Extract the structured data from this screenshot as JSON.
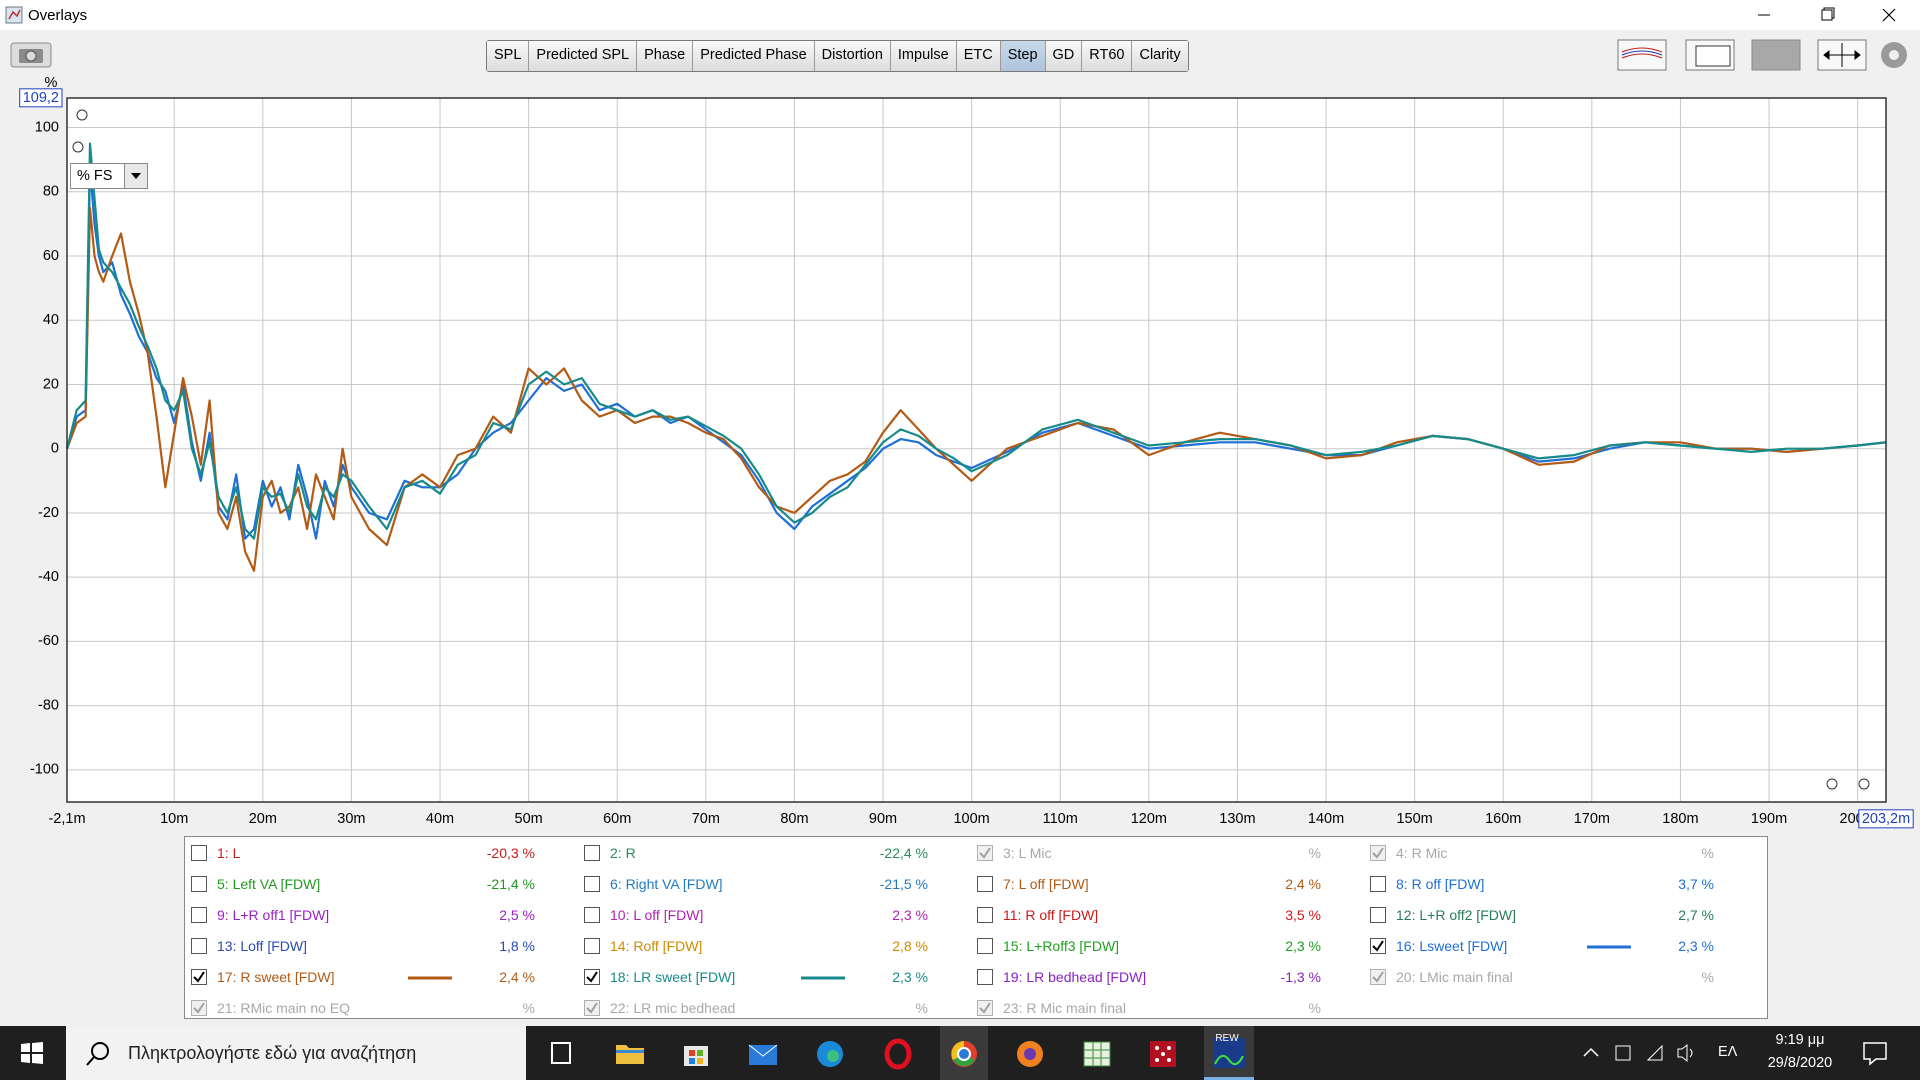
{
  "window": {
    "title": "Overlays"
  },
  "toolbar": {
    "tabs": [
      "SPL",
      "Predicted SPL",
      "Phase",
      "Predicted Phase",
      "Distortion",
      "Impulse",
      "ETC",
      "Step",
      "GD",
      "RT60",
      "Clarity"
    ],
    "active_tab": 7
  },
  "y_unit_selector": "% FS",
  "chart_data": {
    "type": "line",
    "y_label": "%",
    "xlim": [
      -2.1,
      203.2
    ],
    "ylim": [
      -110,
      109.2
    ],
    "xticks": [
      {
        "value": -2.1,
        "label": "-2,1m"
      },
      {
        "value": 10,
        "label": "10m"
      },
      {
        "value": 20,
        "label": "20m"
      },
      {
        "value": 30,
        "label": "30m"
      },
      {
        "value": 40,
        "label": "40m"
      },
      {
        "value": 50,
        "label": "50m"
      },
      {
        "value": 60,
        "label": "60m"
      },
      {
        "value": 70,
        "label": "70m"
      },
      {
        "value": 80,
        "label": "80m"
      },
      {
        "value": 90,
        "label": "90m"
      },
      {
        "value": 100,
        "label": "100m"
      },
      {
        "value": 110,
        "label": "110m"
      },
      {
        "value": 120,
        "label": "120m"
      },
      {
        "value": 130,
        "label": "130m"
      },
      {
        "value": 140,
        "label": "140m"
      },
      {
        "value": 150,
        "label": "150m"
      },
      {
        "value": 160,
        "label": "160m"
      },
      {
        "value": 170,
        "label": "170m"
      },
      {
        "value": 180,
        "label": "180m"
      },
      {
        "value": 190,
        "label": "190m"
      },
      {
        "value": 200,
        "label": "200m"
      },
      {
        "value": 203.2,
        "label": "203,2m"
      }
    ],
    "yticks": [
      -100,
      -80,
      -60,
      -40,
      -20,
      0,
      20,
      40,
      60,
      80,
      100,
      {
        "value": 109.2,
        "label": "109,2"
      }
    ],
    "grid": true,
    "x": [
      -2.1,
      -1,
      0,
      0.5,
      1,
      1.5,
      2,
      3,
      4,
      5,
      6,
      7,
      8,
      9,
      10,
      11,
      12,
      13,
      14,
      15,
      16,
      17,
      18,
      19,
      20,
      21,
      22,
      23,
      24,
      25,
      26,
      27,
      28,
      29,
      30,
      32,
      34,
      36,
      38,
      40,
      42,
      44,
      46,
      48,
      50,
      52,
      54,
      56,
      58,
      60,
      62,
      64,
      66,
      68,
      70,
      72,
      74,
      76,
      78,
      80,
      82,
      84,
      86,
      88,
      90,
      92,
      94,
      96,
      98,
      100,
      104,
      108,
      112,
      116,
      120,
      124,
      128,
      132,
      136,
      140,
      144,
      148,
      152,
      156,
      160,
      164,
      168,
      172,
      176,
      180,
      184,
      188,
      192,
      196,
      200,
      203.2
    ],
    "series": [
      {
        "name": "16: Lsweet [FDW]",
        "color": "#1f6fd6",
        "values": [
          0,
          10,
          12,
          88,
          70,
          60,
          55,
          58,
          48,
          42,
          35,
          30,
          22,
          18,
          8,
          20,
          2,
          -10,
          5,
          -18,
          -22,
          -8,
          -28,
          -25,
          -10,
          -18,
          -12,
          -22,
          -5,
          -15,
          -28,
          -10,
          -18,
          -5,
          -12,
          -20,
          -22,
          -10,
          -12,
          -12,
          -8,
          0,
          5,
          8,
          15,
          22,
          18,
          20,
          12,
          14,
          10,
          12,
          8,
          10,
          6,
          2,
          -2,
          -10,
          -20,
          -25,
          -18,
          -14,
          -10,
          -6,
          0,
          3,
          2,
          -2,
          -4,
          -6,
          -1,
          5,
          8,
          4,
          0,
          1,
          2,
          2,
          0,
          -2,
          -2,
          1,
          4,
          3,
          0,
          -4,
          -3,
          0,
          2,
          1,
          0,
          0,
          -1,
          0,
          1,
          2
        ]
      },
      {
        "name": "17: R sweet [FDW]",
        "color": "#b35a14",
        "values": [
          0,
          8,
          10,
          75,
          60,
          55,
          52,
          60,
          67,
          52,
          42,
          30,
          10,
          -12,
          5,
          22,
          10,
          -5,
          15,
          -20,
          -25,
          -15,
          -32,
          -38,
          -15,
          -10,
          -20,
          -18,
          -12,
          -25,
          -8,
          -15,
          -22,
          0,
          -15,
          -25,
          -30,
          -12,
          -8,
          -12,
          -2,
          0,
          10,
          5,
          25,
          20,
          25,
          15,
          10,
          12,
          8,
          10,
          10,
          8,
          5,
          3,
          -3,
          -12,
          -18,
          -20,
          -15,
          -10,
          -8,
          -4,
          5,
          12,
          6,
          0,
          -5,
          -10,
          0,
          4,
          8,
          6,
          -2,
          2,
          5,
          3,
          1,
          -3,
          -2,
          2,
          4,
          3,
          0,
          -5,
          -4,
          1,
          2,
          2,
          0,
          0,
          -1,
          0,
          1,
          2
        ]
      },
      {
        "name": "18: LR sweet [FDW]",
        "color": "#178a8a",
        "values": [
          0,
          12,
          15,
          95,
          78,
          62,
          58,
          55,
          50,
          45,
          38,
          32,
          25,
          15,
          12,
          18,
          0,
          -8,
          2,
          -15,
          -20,
          -12,
          -25,
          -28,
          -12,
          -15,
          -14,
          -20,
          -8,
          -18,
          -22,
          -12,
          -15,
          -8,
          -10,
          -18,
          -25,
          -12,
          -10,
          -14,
          -5,
          -2,
          8,
          6,
          20,
          24,
          20,
          22,
          14,
          12,
          10,
          12,
          9,
          10,
          7,
          4,
          0,
          -8,
          -18,
          -23,
          -20,
          -15,
          -12,
          -5,
          2,
          6,
          4,
          0,
          -3,
          -7,
          -2,
          6,
          9,
          5,
          1,
          2,
          3,
          3,
          1,
          -2,
          -1,
          1,
          4,
          3,
          0,
          -3,
          -2,
          1,
          2,
          1,
          0,
          -1,
          0,
          0,
          1,
          2
        ]
      }
    ]
  },
  "overlays_panel": {
    "traces": [
      {
        "label": "1: L",
        "value": "-20,3 %",
        "color": "#cc1a1a",
        "state": "unchecked"
      },
      {
        "label": "2: R",
        "value": "-22,4 %",
        "color": "#2a8a5e",
        "state": "unchecked"
      },
      {
        "label": "3: L Mic",
        "value": "%",
        "color": "#a8a8a8",
        "state": "disabled"
      },
      {
        "label": "4: R Mic",
        "value": "%",
        "color": "#a8a8a8",
        "state": "disabled"
      },
      {
        "label": "5: Left VA [FDW]",
        "value": "-21,4 %",
        "color": "#1f9a1f",
        "state": "unchecked"
      },
      {
        "label": "6: Right VA [FDW]",
        "value": "-21,5 %",
        "color": "#1f7ac4",
        "state": "unchecked"
      },
      {
        "label": "7: L off [FDW]",
        "value": "2,4 %",
        "color": "#b35a14",
        "state": "unchecked"
      },
      {
        "label": "8: R off [FDW]",
        "value": "3,7 %",
        "color": "#1f6fd6",
        "state": "unchecked"
      },
      {
        "label": "9: L+R off1 [FDW]",
        "value": "2,5 %",
        "color": "#9a22c4",
        "state": "unchecked"
      },
      {
        "label": "10: L off [FDW]",
        "value": "2,3 %",
        "color": "#b022b0",
        "state": "unchecked"
      },
      {
        "label": "11: R off [FDW]",
        "value": "3,5 %",
        "color": "#cc1a1a",
        "state": "unchecked"
      },
      {
        "label": "12: L+R off2 [FDW]",
        "value": "2,7 %",
        "color": "#2a7a5a",
        "state": "unchecked"
      },
      {
        "label": "13: Loff [FDW]",
        "value": "1,8 %",
        "color": "#2a4ab4",
        "state": "unchecked"
      },
      {
        "label": "14: Roff [FDW]",
        "value": "2,8 %",
        "color": "#d08a00",
        "state": "unchecked"
      },
      {
        "label": "15: L+Roff3 [FDW]",
        "value": "2,3 %",
        "color": "#1fa01f",
        "state": "unchecked"
      },
      {
        "value": "2,3 %",
        "state": "checked"
      },
      {
        "value": "2,4 %",
        "state": "checked"
      },
      {
        "value": "2,3 %",
        "state": "checked"
      },
      {
        "label": "19: LR bedhead [FDW]",
        "value": "-1,3 %",
        "color": "#8a22c4",
        "state": "unchecked"
      },
      {
        "label": "20: LMic main final",
        "value": "%",
        "color": "#a8a8a8",
        "state": "disabled"
      },
      {
        "label": "21: RMic main no EQ",
        "value": "%",
        "color": "#a8a8a8",
        "state": "disabled"
      },
      {
        "label": "22: LR mic bedhead",
        "value": "%",
        "color": "#a8a8a8",
        "state": "disabled"
      },
      {
        "label": "23: R Mic main final",
        "value": "%",
        "color": "#a8a8a8",
        "state": "disabled"
      }
    ]
  },
  "taskbar": {
    "search_placeholder": "Πληκτρολογήστε εδώ για αναζήτηση",
    "rew_icon": "REW",
    "language": "ΕΛ",
    "time": "9:19 μμ",
    "date": "29/8/2020"
  }
}
